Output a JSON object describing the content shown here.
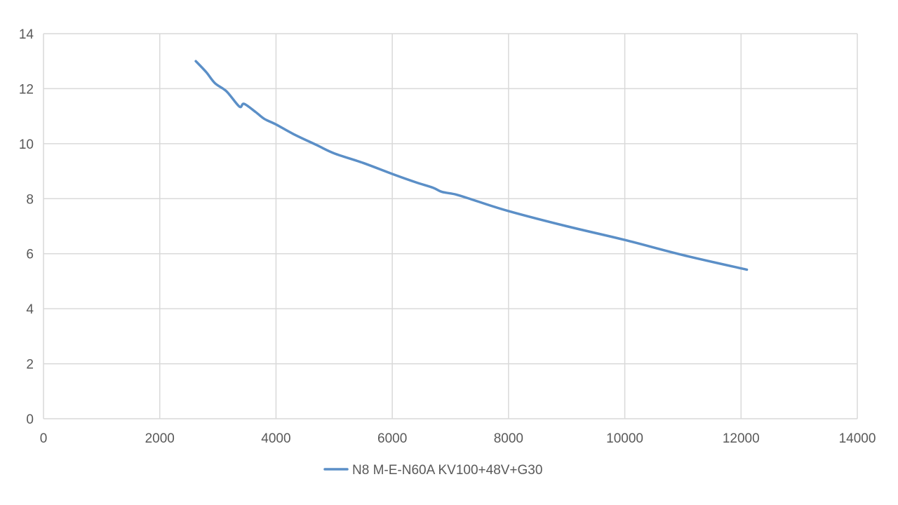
{
  "chart_data": {
    "type": "line",
    "title": "",
    "xlabel": "",
    "ylabel": "",
    "xlim": [
      0,
      14000
    ],
    "ylim": [
      0,
      14
    ],
    "x_ticks": [
      0,
      2000,
      4000,
      6000,
      8000,
      10000,
      12000,
      14000
    ],
    "y_ticks": [
      0,
      2,
      4,
      6,
      8,
      10,
      12,
      14
    ],
    "grid": true,
    "legend_position": "bottom",
    "series": [
      {
        "name": "N8 M-E-N60A KV100+48V+G30",
        "color": "#5b8fc7",
        "points": [
          [
            2620,
            13.0
          ],
          [
            2800,
            12.6
          ],
          [
            2950,
            12.2
          ],
          [
            3150,
            11.9
          ],
          [
            3370,
            11.35
          ],
          [
            3450,
            11.45
          ],
          [
            3650,
            11.15
          ],
          [
            3800,
            10.9
          ],
          [
            4000,
            10.7
          ],
          [
            4300,
            10.35
          ],
          [
            4700,
            9.95
          ],
          [
            5000,
            9.65
          ],
          [
            5500,
            9.3
          ],
          [
            6000,
            8.9
          ],
          [
            6400,
            8.6
          ],
          [
            6700,
            8.4
          ],
          [
            6850,
            8.25
          ],
          [
            7100,
            8.15
          ],
          [
            7400,
            7.95
          ],
          [
            8000,
            7.55
          ],
          [
            9000,
            7.0
          ],
          [
            10000,
            6.5
          ],
          [
            11000,
            5.95
          ],
          [
            12100,
            5.42
          ]
        ]
      }
    ]
  }
}
